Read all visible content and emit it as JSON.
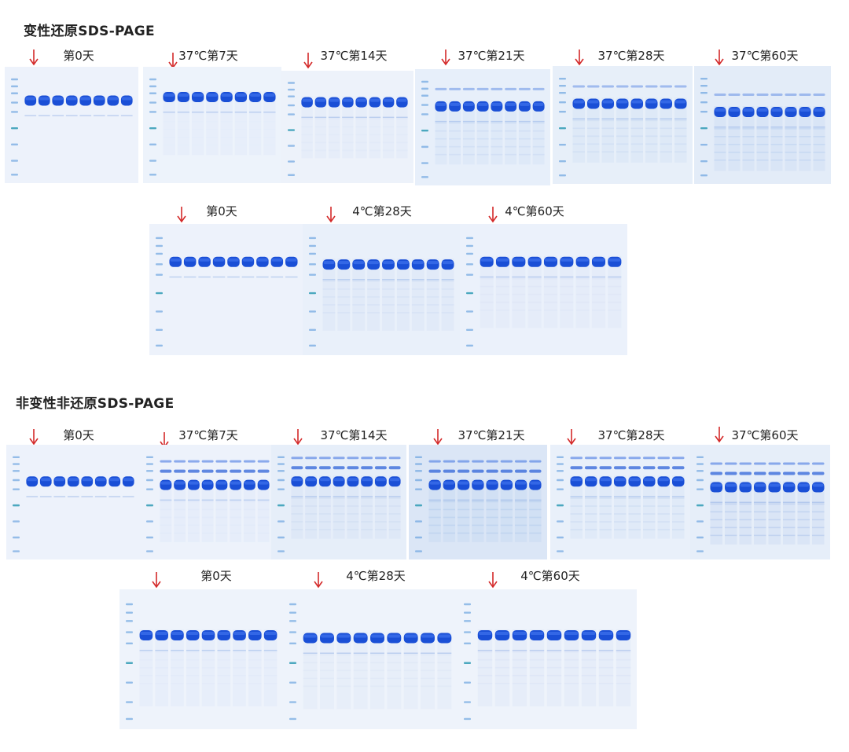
{
  "sections": [
    {
      "id": "reducing",
      "title": "变性还原SDS-PAGE",
      "row1": [
        "第0天",
        "37℃第7天",
        "37℃第14天",
        "37℃第21天",
        "37℃第28天",
        "37℃第60天"
      ],
      "row2": [
        "第0天",
        "4℃第28天",
        "4℃第60天"
      ]
    },
    {
      "id": "nonreducing",
      "title": "非变性非还原SDS-PAGE",
      "row1": [
        "第0天",
        "37℃第7天",
        "37℃第14天",
        "37℃第21天",
        "37℃第28天",
        "37℃第60天"
      ],
      "row2": [
        "第0天",
        "4℃第28天",
        "4℃第60天"
      ]
    }
  ],
  "colors": {
    "gel_background": "#e8f0fa",
    "main_band": "#1a4fd6",
    "marker": "#4a8fd8",
    "arrow": "#d42a2a"
  },
  "icons": [
    "down-arrow-icon"
  ]
}
